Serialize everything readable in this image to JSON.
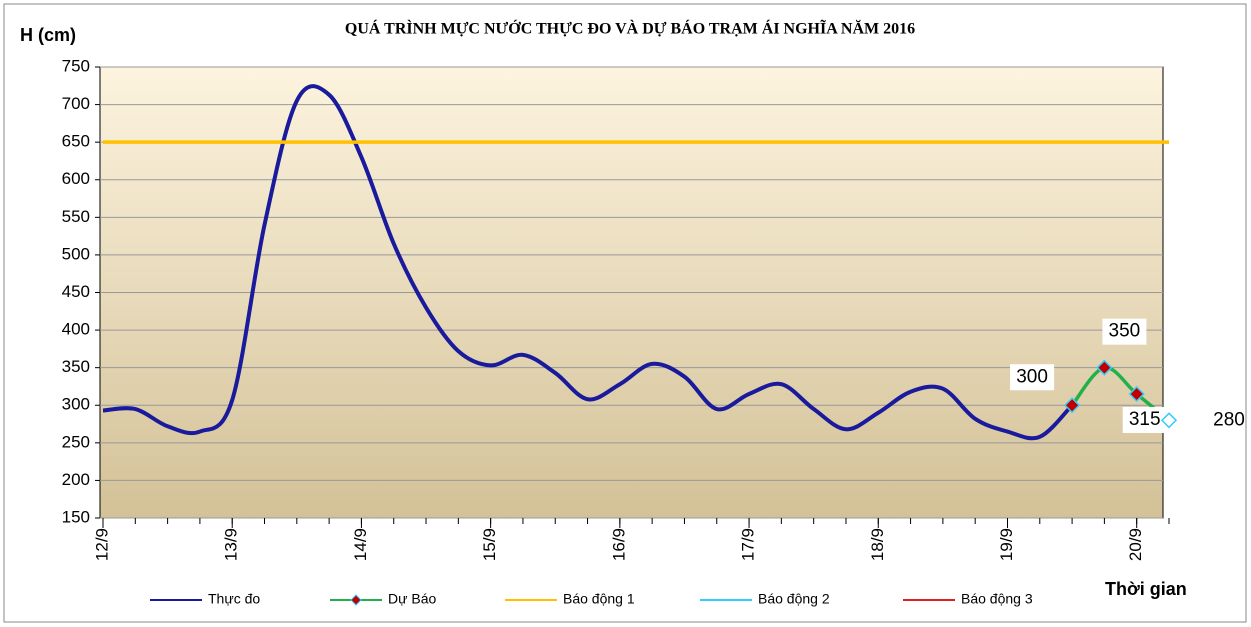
{
  "chart_data": {
    "type": "line",
    "title": "QUÁ TRÌNH MỰC NƯỚC THỰC ĐO VÀ DỰ BÁO TRẠM ÁI NGHĨA NĂM 2016",
    "y_label": "H (cm)",
    "x_label": "Thời gian",
    "x": [
      0,
      1,
      2,
      3,
      4,
      5,
      6,
      7,
      8,
      9,
      10,
      11,
      12,
      13,
      14,
      15,
      16,
      17,
      18,
      19,
      20,
      21,
      22,
      23,
      24,
      25,
      26,
      27,
      28,
      29,
      30,
      31,
      32,
      33
    ],
    "xlim": [
      0,
      33
    ],
    "xticks": [
      {
        "value": 0,
        "label": "12/9"
      },
      {
        "value": 4,
        "label": "13/9"
      },
      {
        "value": 8,
        "label": "14/9"
      },
      {
        "value": 12,
        "label": "15/9"
      },
      {
        "value": 16,
        "label": "16/9"
      },
      {
        "value": 20,
        "label": "17/9"
      },
      {
        "value": 24,
        "label": "18/9"
      },
      {
        "value": 28,
        "label": "19/9"
      },
      {
        "value": 32,
        "label": "20/9"
      }
    ],
    "ylim": [
      150,
      750
    ],
    "yticks": [
      150,
      200,
      250,
      300,
      350,
      400,
      450,
      500,
      550,
      600,
      650,
      700,
      750
    ],
    "grid": true,
    "series": [
      {
        "name": "Thực đo",
        "color": "#1a1a9c",
        "values": [
          293,
          295,
          272,
          265,
          307,
          540,
          705,
          713,
          630,
          515,
          430,
          372,
          353,
          367,
          343,
          308,
          328,
          355,
          338,
          295,
          315,
          328,
          295,
          268,
          290,
          318,
          322,
          282,
          265,
          258,
          300,
          null,
          null,
          null
        ]
      },
      {
        "name": "Dự Báo",
        "color": "#22b04b",
        "values": [
          null,
          null,
          null,
          null,
          null,
          null,
          null,
          null,
          null,
          null,
          null,
          null,
          null,
          null,
          null,
          null,
          null,
          null,
          null,
          null,
          null,
          null,
          null,
          null,
          null,
          null,
          null,
          null,
          null,
          null,
          300,
          350,
          315,
          280
        ]
      },
      {
        "name": "Báo động 1",
        "color": "#ffc000",
        "values": [
          650,
          650,
          650,
          650,
          650,
          650,
          650,
          650,
          650,
          650,
          650,
          650,
          650,
          650,
          650,
          650,
          650,
          650,
          650,
          650,
          650,
          650,
          650,
          650,
          650,
          650,
          650,
          650,
          650,
          650,
          650,
          650,
          650,
          650
        ]
      },
      {
        "name": "Báo động 2",
        "color": "#33ccff",
        "values": [
          null,
          null,
          null,
          null,
          null,
          null,
          null,
          null,
          null,
          null,
          null,
          null,
          null,
          null,
          null,
          null,
          null,
          null,
          null,
          null,
          null,
          null,
          null,
          null,
          null,
          null,
          null,
          null,
          null,
          null,
          null,
          null,
          null,
          null
        ]
      },
      {
        "name": "Báo động 3",
        "color": "#e02020",
        "values": [
          null,
          null,
          null,
          null,
          null,
          null,
          null,
          null,
          null,
          null,
          null,
          null,
          null,
          null,
          null,
          null,
          null,
          null,
          null,
          null,
          null,
          null,
          null,
          null,
          null,
          null,
          null,
          null,
          null,
          null,
          null,
          null,
          null,
          null
        ]
      }
    ]
  }
}
